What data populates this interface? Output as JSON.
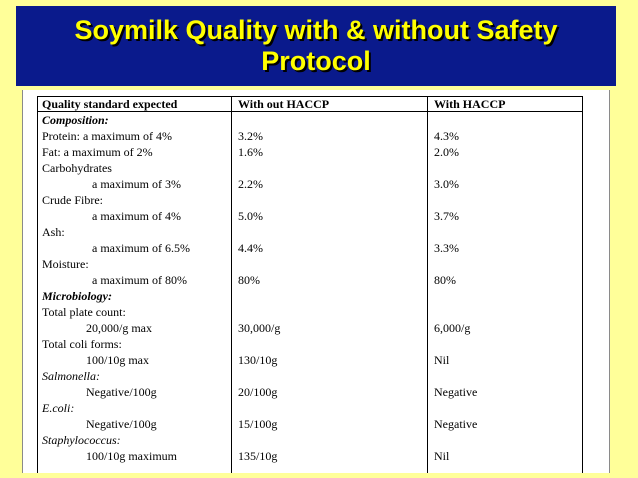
{
  "slide": {
    "title": "Soymilk Quality with & without Safety Protocol"
  },
  "table": {
    "headers": [
      "Quality standard expected",
      "With out HACCP",
      "With HACCP"
    ],
    "rows": [
      {
        "label": "Composition:",
        "without": "",
        "with": ""
      },
      {
        "label": "Protein:  a maximum of 4%",
        "without": "3.2%",
        "with": "4.3%"
      },
      {
        "label": "Fat: a maximum of 2%",
        "without": "1.6%",
        "with": "2.0%"
      },
      {
        "label": "Carbohydrates",
        "without": "",
        "with": ""
      },
      {
        "label": "a maximum of 3%",
        "without": "2.2%",
        "with": "3.0%"
      },
      {
        "label": "Crude Fibre:",
        "without": "",
        "with": ""
      },
      {
        "label": "a maximum of 4%",
        "without": "5.0%",
        "with": "3.7%"
      },
      {
        "label": "Ash:",
        "without": "",
        "with": ""
      },
      {
        "label": "a maximum of 6.5%",
        "without": "4.4%",
        "with": "3.3%"
      },
      {
        "label": "Moisture:",
        "without": "",
        "with": ""
      },
      {
        "label": "a maximum of 80%",
        "without": "80%",
        "with": "80%"
      },
      {
        "label": "Microbiology:",
        "without": "",
        "with": ""
      },
      {
        "label": "Total plate count:",
        "without": "",
        "with": ""
      },
      {
        "label": "20,000/g max",
        "without": "30,000/g",
        "with": "6,000/g"
      },
      {
        "label": "Total coli forms:",
        "without": "",
        "with": ""
      },
      {
        "label": "100/10g max",
        "without": "130/10g",
        "with": "Nil"
      },
      {
        "label": "Salmonella:",
        "without": "",
        "with": ""
      },
      {
        "label": "Negative/100g",
        "without": "20/100g",
        "with": "Negative"
      },
      {
        "label": "E.coli:",
        "without": "",
        "with": ""
      },
      {
        "label": "Negative/100g",
        "without": "15/100g",
        "with": "Negative"
      },
      {
        "label": "Staphylococcus:",
        "without": "",
        "with": ""
      },
      {
        "label": "100/10g maximum",
        "without": "135/10g",
        "with": "Nil"
      }
    ]
  }
}
